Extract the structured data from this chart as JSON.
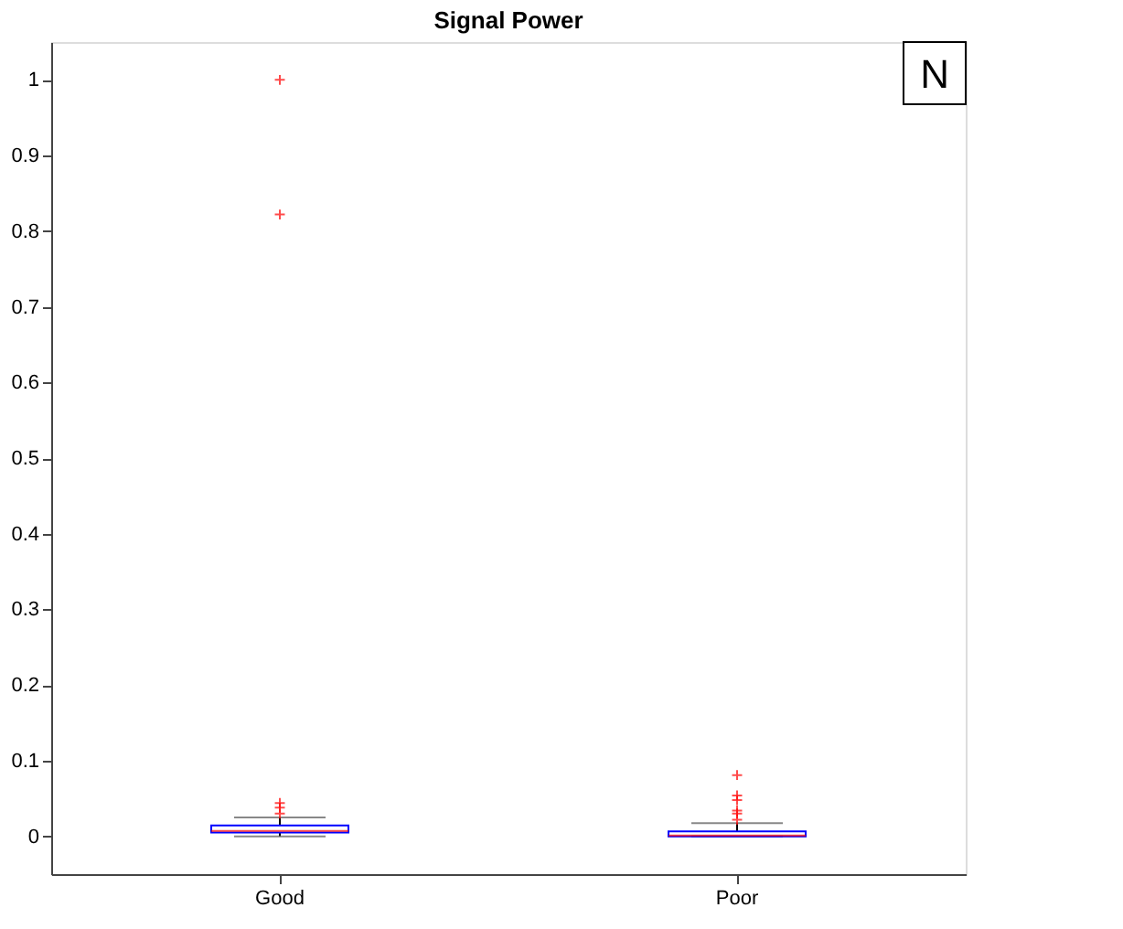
{
  "chart_data": {
    "type": "box",
    "title": "Signal Power",
    "categories": [
      "Good",
      "Poor"
    ],
    "boxes": [
      {
        "low": 0.0,
        "q1": 0.005,
        "median": 0.007,
        "q3": 0.0145,
        "high": 0.025,
        "outliers": [
          1.0,
          0.822,
          0.044,
          0.038,
          0.03
        ]
      },
      {
        "low": 0.0,
        "q1": 0.0,
        "median": 0.001,
        "q3": 0.0065,
        "high": 0.0175,
        "outliers": [
          0.081,
          0.054,
          0.048,
          0.034,
          0.03,
          0.022
        ]
      }
    ],
    "ylim": [
      -0.05,
      1.05
    ],
    "yticks": [
      0,
      0.1,
      0.2,
      0.3,
      0.4,
      0.5,
      0.6,
      0.7,
      0.8,
      0.9,
      1
    ],
    "grid": false,
    "annotations": [
      "N"
    ]
  }
}
